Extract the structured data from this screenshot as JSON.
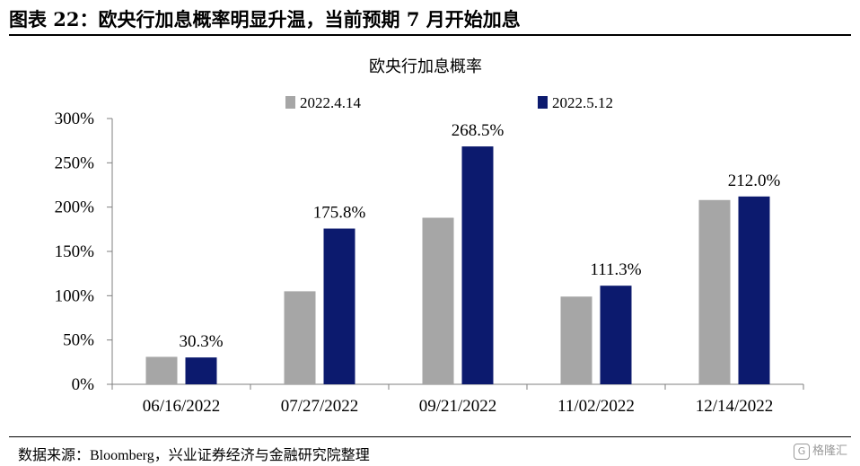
{
  "figure": {
    "title": "图表 22：欧央行加息概率明显升温，当前预期 7 月开始加息",
    "source": "数据来源：Bloomberg，兴业证券经济与金融研究院整理",
    "watermark": "格隆汇",
    "watermark_icon": "G"
  },
  "colors": {
    "series_1": "#a6a6a6",
    "series_2": "#0c1a6e",
    "axis": "#7f7f7f",
    "text": "#000000"
  },
  "chart_data": {
    "type": "bar",
    "title": "欧央行加息概率",
    "categories": [
      "06/16/2022",
      "07/27/2022",
      "09/21/2022",
      "11/02/2022",
      "12/14/2022"
    ],
    "series": [
      {
        "name": "2022.4.14",
        "values": [
          31,
          105,
          188,
          99,
          208
        ]
      },
      {
        "name": "2022.5.12",
        "values": [
          30.3,
          175.8,
          268.5,
          111.3,
          212.0
        ]
      }
    ],
    "data_labels": [
      "30.3%",
      "175.8%",
      "268.5%",
      "111.3%",
      "212.0%"
    ],
    "y_ticks": [
      "0%",
      "50%",
      "100%",
      "150%",
      "200%",
      "250%",
      "300%"
    ],
    "ylim": [
      0,
      300
    ],
    "grid": false,
    "legend_position": "top-center"
  }
}
